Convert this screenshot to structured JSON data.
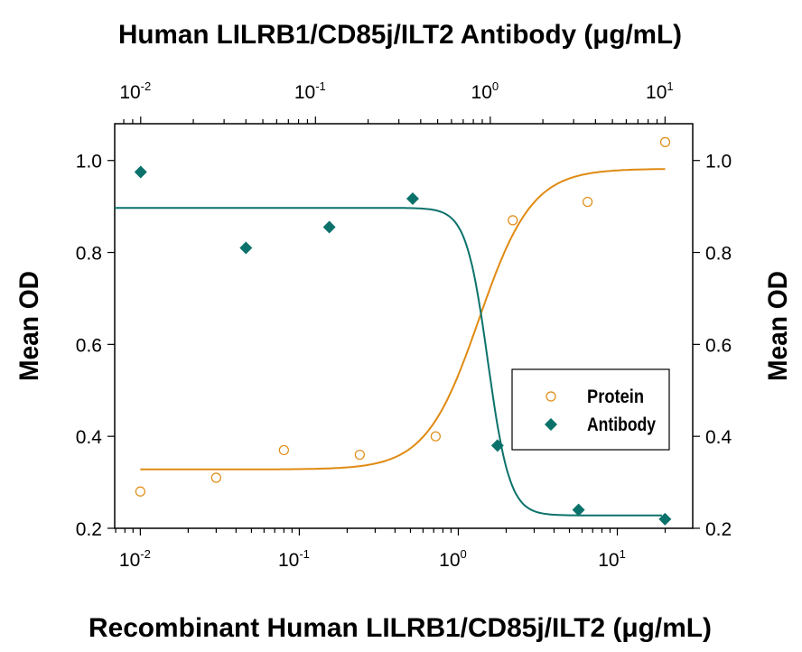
{
  "chart_data": {
    "type": "scatter",
    "top_title": "Human LILRB1/CD85j/ILT2 Antibody (μg/mL)",
    "xlabel": "Recombinant Human LILRB1/CD85j/ILT2 (μg/mL)",
    "ylabel_left": "Mean OD",
    "ylabel_right": "Mean OD",
    "x_scale": "log",
    "x_bottom_ticks": [
      "10-2",
      "10-1",
      "100",
      "101"
    ],
    "x_bottom_tick_values": [
      0.01,
      0.1,
      1,
      10
    ],
    "x_top_ticks": [
      "10-2",
      "10-1",
      "100",
      "101"
    ],
    "x_top_tick_values": [
      0.01,
      0.1,
      1,
      10
    ],
    "x_bottom_lim": [
      0.0069,
      29.8
    ],
    "x_top_lim": [
      0.0071,
      14.4
    ],
    "ylim": [
      0.2,
      1.08
    ],
    "y_ticks": [
      "0.2",
      "0.4",
      "0.6",
      "0.8",
      "1.0"
    ],
    "y_tick_values": [
      0.2,
      0.4,
      0.6,
      0.8,
      1.0
    ],
    "grid": false,
    "legend_position": "right",
    "series": [
      {
        "name": "Protein",
        "axis": "bottom",
        "marker": "open-circle",
        "color": "#e08a12",
        "x": [
          0.01,
          0.03,
          0.08,
          0.24,
          0.72,
          2.2,
          6.5,
          20
        ],
        "y": [
          0.28,
          0.31,
          0.37,
          0.36,
          0.4,
          0.87,
          0.91,
          1.04
        ],
        "fit": {
          "bottom": 0.328,
          "top": 0.982,
          "ec50": 1.35,
          "hill": 2.6,
          "x_range": [
            0.01,
            20
          ]
        }
      },
      {
        "name": "Antibody",
        "axis": "top",
        "marker": "filled-diamond",
        "color": "#0b726b",
        "x": [
          0.01,
          0.04,
          0.12,
          0.36,
          1.1,
          3.2,
          10
        ],
        "y": [
          0.975,
          0.81,
          0.855,
          0.917,
          0.38,
          0.24,
          0.22
        ],
        "fit": {
          "bottom": 0.228,
          "top": 0.897,
          "ec50": 0.97,
          "hill": -7,
          "x_range": [
            0.0071,
            9.6
          ]
        }
      }
    ]
  }
}
